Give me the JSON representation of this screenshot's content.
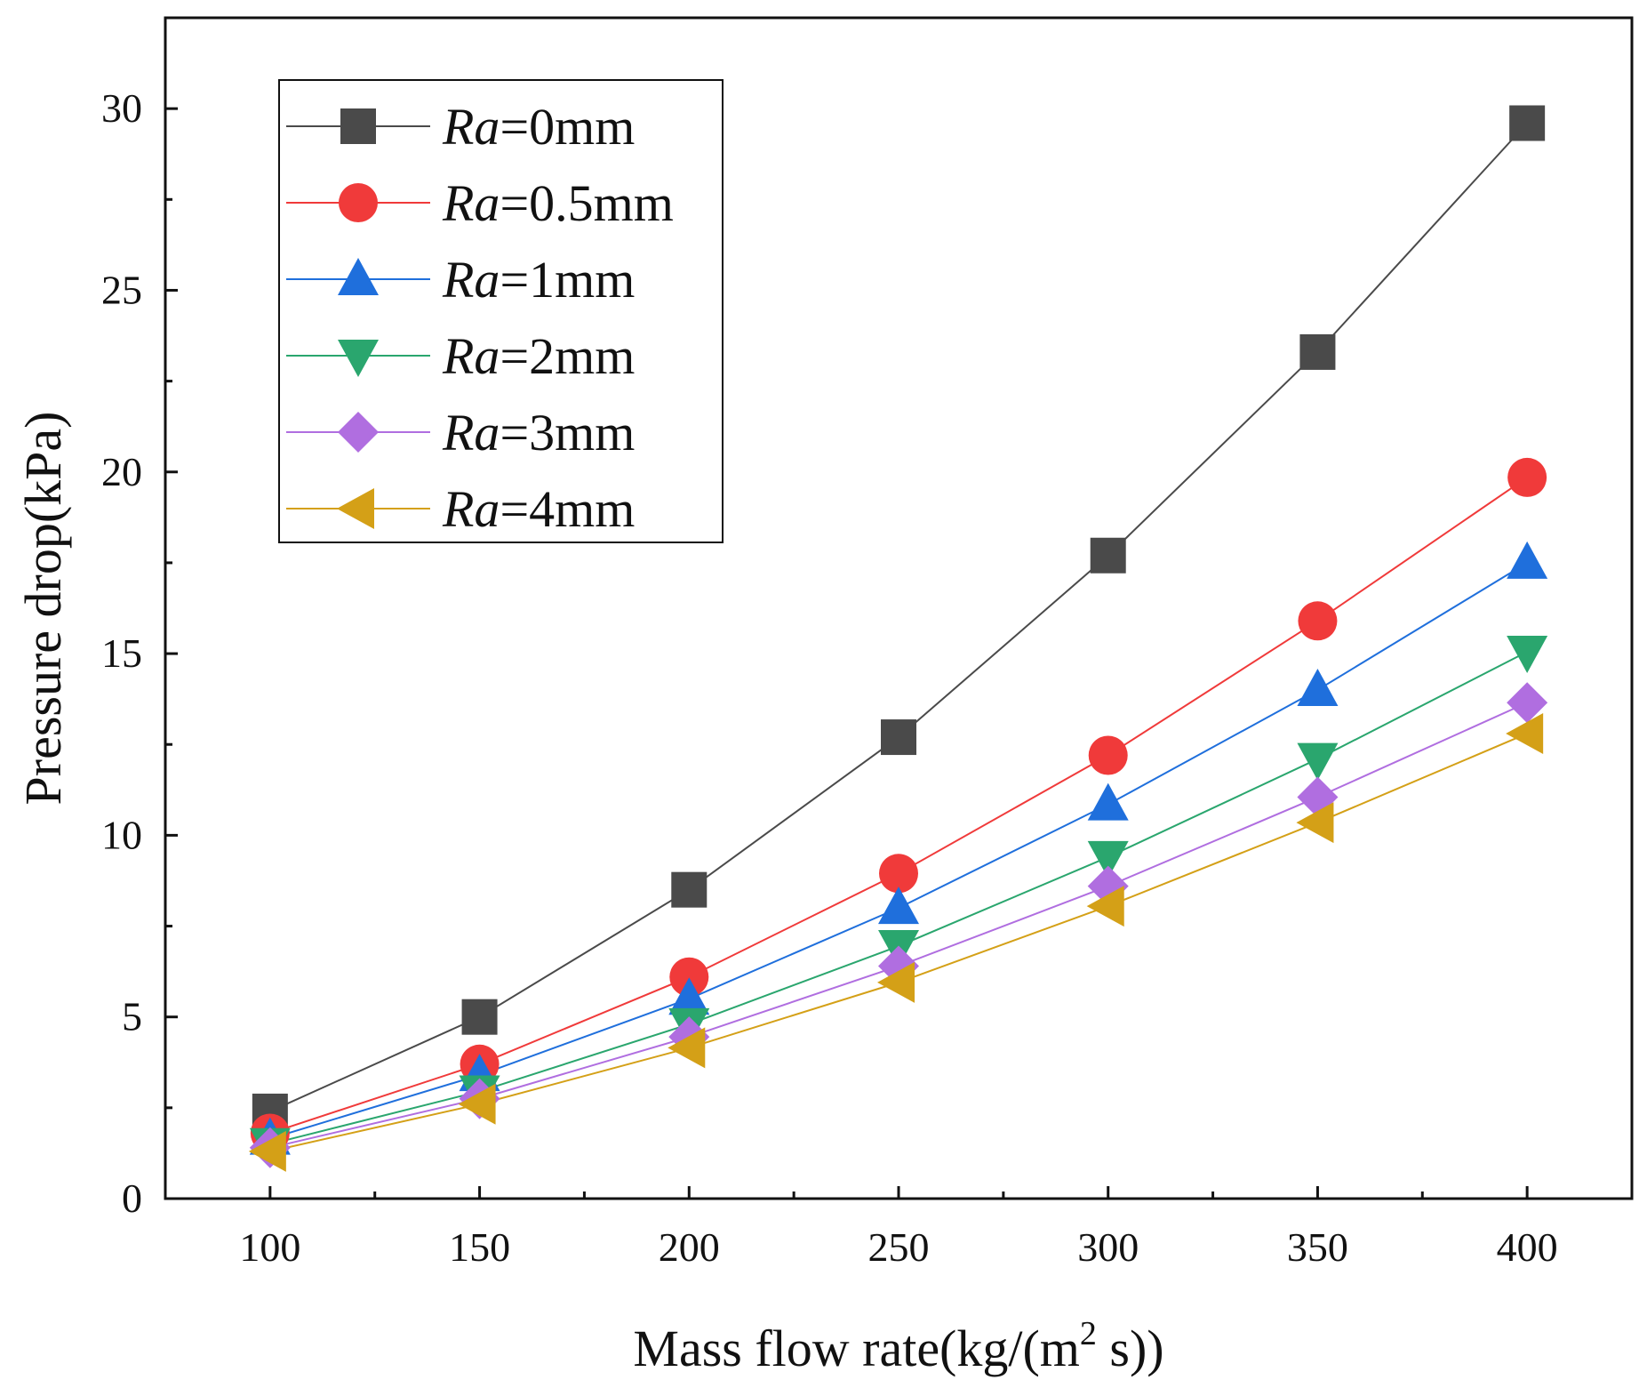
{
  "chart_data": {
    "type": "line",
    "title": "",
    "xlabel_main": "Mass flow rate(kg/(m",
    "xlabel_sup": "2",
    "xlabel_tail": " s))",
    "ylabel": "Pressure drop(kPa)",
    "x": [
      100,
      150,
      200,
      250,
      300,
      350,
      400
    ],
    "xlim": [
      75,
      425
    ],
    "ylim": [
      0,
      32.5
    ],
    "xticks": [
      "100",
      "150",
      "200",
      "250",
      "300",
      "350",
      "400"
    ],
    "yticks": [
      "0",
      "5",
      "10",
      "15",
      "20",
      "25",
      "30"
    ],
    "ytick_values": [
      0,
      5,
      10,
      15,
      20,
      25,
      30
    ],
    "legend_position": "top-left",
    "series": [
      {
        "name_italic": "Ra",
        "name_rest": "=0mm",
        "color": "#4a4a4a",
        "marker": "square",
        "values": [
          2.4,
          5.0,
          8.5,
          12.7,
          17.7,
          23.3,
          29.6
        ]
      },
      {
        "name_italic": "Ra",
        "name_rest": "=0.5mm",
        "color": "#f03a3a",
        "marker": "circle",
        "values": [
          1.8,
          3.7,
          6.1,
          8.95,
          12.2,
          15.9,
          19.85
        ]
      },
      {
        "name_italic": "Ra",
        "name_rest": "=1mm",
        "color": "#1f6fdc",
        "marker": "triangle-up",
        "values": [
          1.65,
          3.4,
          5.5,
          8.0,
          10.85,
          14.0,
          17.5
        ]
      },
      {
        "name_italic": "Ra",
        "name_rest": "=2mm",
        "color": "#2aa66e",
        "marker": "triangle-down",
        "values": [
          1.5,
          2.95,
          4.8,
          6.95,
          9.4,
          12.1,
          15.05
        ]
      },
      {
        "name_italic": "Ra",
        "name_rest": "=3mm",
        "color": "#b06ee0",
        "marker": "diamond",
        "values": [
          1.4,
          2.75,
          4.45,
          6.4,
          8.6,
          11.05,
          13.65
        ]
      },
      {
        "name_italic": "Ra",
        "name_rest": "=4mm",
        "color": "#d4a017",
        "marker": "triangle-left",
        "values": [
          1.3,
          2.6,
          4.15,
          5.95,
          8.05,
          10.35,
          12.8
        ]
      }
    ]
  }
}
